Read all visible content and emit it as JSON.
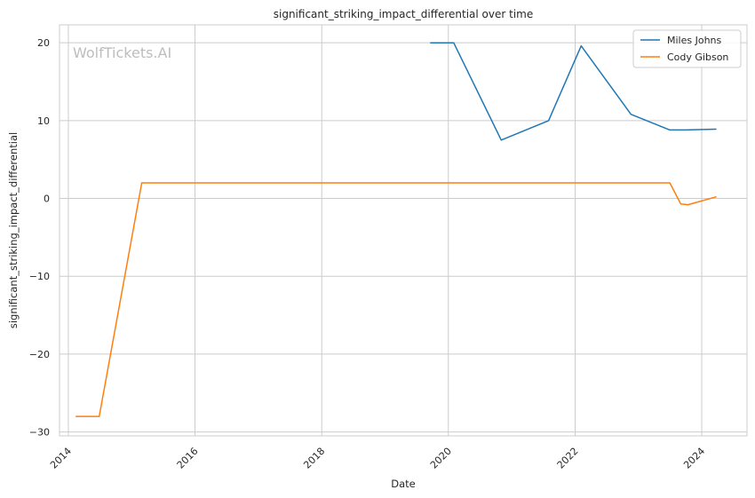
{
  "chart_data": {
    "type": "line",
    "title": "significant_striking_impact_differential over time",
    "xlabel": "Date",
    "ylabel": "significant_striking_impact_differential",
    "watermark": "WolfTickets.AI",
    "x_tick_labels": [
      "2014",
      "2016",
      "2018",
      "2020",
      "2022",
      "2024"
    ],
    "y_tick_labels": [
      "20",
      "10",
      "0",
      "−10",
      "−20",
      "−30"
    ],
    "x_ticks": [
      "2014-01-01",
      "2016-01-01",
      "2018-01-01",
      "2020-01-01",
      "2022-01-01",
      "2024-01-01"
    ],
    "y_ticks": [
      20,
      10,
      0,
      -10,
      -20,
      -30
    ],
    "xlim": [
      "2013-11-11",
      "2024-09-18"
    ],
    "ylim": [
      -30.5,
      22.3
    ],
    "grid": true,
    "legend_position": "top-right",
    "series": [
      {
        "name": "Miles Johns",
        "color": "#1f77b4",
        "points": [
          {
            "x": "2019-09-21",
            "y": 20.0
          },
          {
            "x": "2020-02-01",
            "y": 20.0
          },
          {
            "x": "2020-11-01",
            "y": 7.5
          },
          {
            "x": "2021-08-01",
            "y": 10.0
          },
          {
            "x": "2022-02-05",
            "y": 19.6
          },
          {
            "x": "2022-11-19",
            "y": 10.8
          },
          {
            "x": "2023-07-01",
            "y": 8.8
          },
          {
            "x": "2023-10-01",
            "y": 8.8
          },
          {
            "x": "2024-03-23",
            "y": 8.9
          }
        ]
      },
      {
        "name": "Cody Gibson",
        "color": "#ff7f0e",
        "points": [
          {
            "x": "2014-02-15",
            "y": -28.0
          },
          {
            "x": "2014-06-28",
            "y": -28.0
          },
          {
            "x": "2015-02-28",
            "y": 2.0
          },
          {
            "x": "2023-07-01",
            "y": 2.0
          },
          {
            "x": "2023-09-02",
            "y": -0.7
          },
          {
            "x": "2023-10-14",
            "y": -0.8
          },
          {
            "x": "2024-03-23",
            "y": 0.2
          }
        ]
      }
    ]
  }
}
